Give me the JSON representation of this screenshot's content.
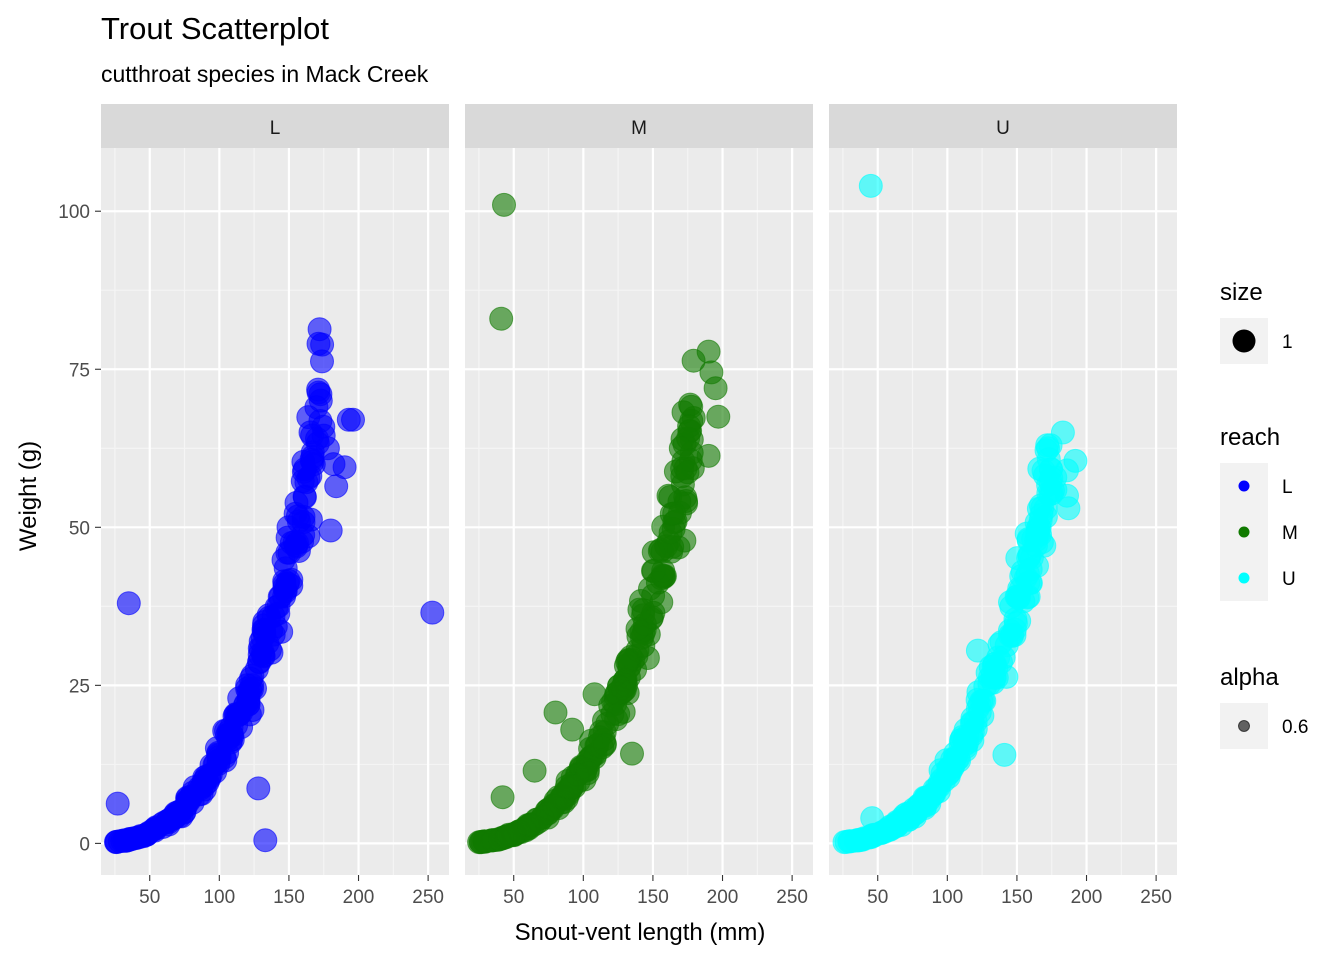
{
  "chart_data": {
    "type": "scatter",
    "title": "Trout Scatterplot",
    "subtitle": "cutthroat species in Mack Creek",
    "xlabel": "Snout-vent length (mm)",
    "ylabel": "Weight (g)",
    "xlim": [
      15,
      265
    ],
    "ylim": [
      -5,
      110
    ],
    "x_ticks": [
      50,
      100,
      150,
      200,
      250
    ],
    "y_ticks": [
      0,
      25,
      50,
      75,
      100
    ],
    "x_tick_labels": [
      "50",
      "100",
      "150",
      "200",
      "250"
    ],
    "y_tick_labels": [
      "0",
      "25",
      "50",
      "75",
      "100"
    ],
    "grid": true,
    "legend_position": "right",
    "point_alpha": 0.6,
    "facets": [
      {
        "label": "L",
        "color": "#0000FF",
        "curve": {
          "a": 1.35e-05,
          "b": 3.0,
          "x_range": [
            25,
            175
          ]
        },
        "outliers": [
          [
            35,
            38
          ],
          [
            27,
            6.3
          ],
          [
            128,
            8.7
          ],
          [
            133,
            0.5
          ],
          [
            253,
            36.5
          ],
          [
            193,
            67
          ],
          [
            196,
            67
          ],
          [
            190,
            59.5
          ],
          [
            184,
            56.5
          ],
          [
            180,
            49.5
          ],
          [
            175,
            64.5
          ],
          [
            178,
            62.5
          ],
          [
            182,
            60
          ]
        ]
      },
      {
        "label": "M",
        "color": "#107A00",
        "curve": {
          "a": 1.17e-05,
          "b": 3.0,
          "x_range": [
            25,
            180
          ]
        },
        "outliers": [
          [
            43,
            101
          ],
          [
            41,
            83
          ],
          [
            80,
            20.7
          ],
          [
            42,
            7.3
          ],
          [
            65,
            11.5
          ],
          [
            92,
            18
          ],
          [
            108,
            23.6
          ],
          [
            135,
            14.2
          ],
          [
            190,
            77.8
          ],
          [
            192,
            74.5
          ],
          [
            195,
            72
          ],
          [
            197,
            67.5
          ],
          [
            190,
            61.3
          ],
          [
            176,
            66
          ],
          [
            170,
            62.5
          ]
        ]
      },
      {
        "label": "U",
        "color": "#00FFFF",
        "curve": {
          "a": 1.12e-05,
          "b": 3.0,
          "x_range": [
            25,
            178
          ]
        },
        "outliers": [
          [
            45,
            104
          ],
          [
            46,
            4
          ],
          [
            122,
            30.5
          ],
          [
            141,
            14
          ],
          [
            183,
            65
          ],
          [
            192,
            60.5
          ],
          [
            186,
            59
          ],
          [
            175,
            55.3
          ],
          [
            186,
            55
          ],
          [
            187,
            53
          ],
          [
            157,
            49
          ]
        ]
      }
    ],
    "legends": [
      {
        "title": "size",
        "items": [
          {
            "label": "1",
            "symbol": "big-dot"
          }
        ]
      },
      {
        "title": "reach",
        "items": [
          {
            "label": "L",
            "color": "#0000FF"
          },
          {
            "label": "M",
            "color": "#107A00"
          },
          {
            "label": "U",
            "color": "#00FFFF"
          }
        ]
      },
      {
        "title": "alpha",
        "items": [
          {
            "label": "0.6",
            "symbol": "alpha-dot"
          }
        ]
      }
    ]
  }
}
